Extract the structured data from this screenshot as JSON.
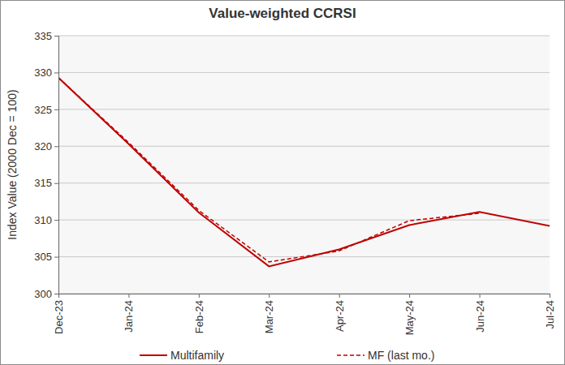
{
  "chart_data": {
    "type": "line",
    "title": "Value-weighted CCRSI",
    "y_label": "Index Value (2000 Dec = 100)",
    "categories": [
      "Dec-23",
      "Jan-24",
      "Feb-24",
      "Mar-24",
      "Apr-24",
      "May-24",
      "Jun-24",
      "Jul-24"
    ],
    "series": [
      {
        "name": "Multifamily",
        "color": "#c00000",
        "line_style": "solid",
        "values": [
          329.3,
          320.3,
          311.0,
          303.7,
          306.0,
          309.3,
          311.1,
          309.2
        ]
      },
      {
        "name": "MF (last mo.)",
        "color": "#c00000",
        "line_style": "dashed",
        "values": [
          329.3,
          320.5,
          311.3,
          304.3,
          305.8,
          309.9,
          310.9,
          null
        ]
      }
    ],
    "ylim": [
      300,
      335
    ],
    "yticks": [
      300,
      305,
      310,
      315,
      320,
      325,
      330,
      335
    ],
    "grid": true,
    "legend": "bottom"
  }
}
